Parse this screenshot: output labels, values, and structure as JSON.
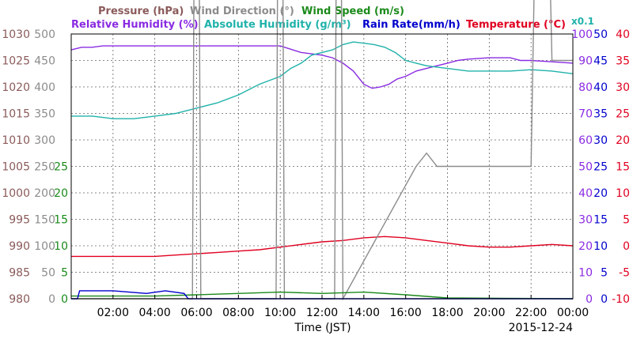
{
  "chart_data": {
    "type": "line",
    "legend": {
      "row1": [
        {
          "label": "Pressure (hPa)",
          "color": "#8b5a5a"
        },
        {
          "label": "Wind Direction (°)",
          "color": "#8c8c8c"
        },
        {
          "label": "Wind Speed (m/s)",
          "color": "#1a8a1a"
        }
      ],
      "row2": [
        {
          "label": "Relative Humidity (%)",
          "color": "#8a2be2"
        },
        {
          "label": "Absolute Humidity (g/m³)",
          "color": "#20b2aa"
        },
        {
          "label": "Rain Rate(mm/h)",
          "color": "#0000cd"
        },
        {
          "label": "Temperature (°C)",
          "color": "#e00020"
        }
      ],
      "scale_note": "x0.1",
      "scale_note_color": "#20b2aa"
    },
    "xlabel": "Time (JST)",
    "date_label": "2015-12-24",
    "x_ticks": [
      "02:00",
      "04:00",
      "06:00",
      "08:00",
      "10:00",
      "12:00",
      "14:00",
      "16:00",
      "18:00",
      "20:00",
      "22:00",
      "00:00"
    ],
    "x_range": [
      0,
      24
    ],
    "axes": {
      "pressure": {
        "ticks": [
          "1030",
          "1025",
          "1020",
          "1015",
          "1010",
          "1005",
          "1000",
          "995",
          "990",
          "985",
          "980"
        ],
        "range": [
          980,
          1030
        ],
        "color": "#8b5a5a"
      },
      "wind_direction": {
        "ticks": [
          "500",
          "450",
          "400",
          "350",
          "300",
          "250",
          "200",
          "150",
          "100",
          "50",
          "0"
        ],
        "range": [
          0,
          500
        ],
        "color": "#8c8c8c"
      },
      "wind_speed": {
        "ticks": [
          "25",
          "20",
          "15",
          "10",
          "5",
          "0"
        ],
        "range": [
          0,
          25
        ],
        "color": "#1a8a1a"
      },
      "relative_humidity": {
        "ticks": [
          "100",
          "90",
          "80",
          "70",
          "60",
          "50",
          "40",
          "30",
          "20",
          "10",
          "0"
        ],
        "range": [
          0,
          100
        ],
        "color": "#8a2be2"
      },
      "rain_rate": {
        "ticks": [
          "50",
          "45",
          "40",
          "35",
          "30",
          "25",
          "20",
          "15",
          "10",
          "5",
          "0"
        ],
        "range": [
          0,
          50
        ],
        "color": "#0000cd"
      },
      "temperature": {
        "ticks": [
          "40",
          "35",
          "30",
          "25",
          "20",
          "15",
          "10",
          "5",
          "0",
          "-5",
          "-10"
        ],
        "range": [
          -10,
          40
        ],
        "color": "#e00020"
      }
    },
    "series": [
      {
        "name": "Relative Humidity (%)",
        "color": "#8a2be2",
        "points": [
          [
            0,
            94
          ],
          [
            0.5,
            95
          ],
          [
            1,
            95
          ],
          [
            1.5,
            95.5
          ],
          [
            4,
            95.5
          ],
          [
            6,
            95.5
          ],
          [
            8,
            95.5
          ],
          [
            10,
            95.5
          ],
          [
            11,
            93
          ],
          [
            12,
            92
          ],
          [
            12.5,
            91
          ],
          [
            13,
            89
          ],
          [
            13.5,
            86
          ],
          [
            14,
            81
          ],
          [
            14.4,
            79.5
          ],
          [
            14.8,
            80
          ],
          [
            15.2,
            81
          ],
          [
            15.6,
            83
          ],
          [
            16,
            84
          ],
          [
            16.5,
            86
          ],
          [
            17,
            87
          ],
          [
            17.5,
            88
          ],
          [
            18,
            89
          ],
          [
            18.5,
            90
          ],
          [
            19,
            90.5
          ],
          [
            20,
            91
          ],
          [
            21,
            91
          ],
          [
            21.5,
            90
          ],
          [
            22,
            90
          ],
          [
            23,
            89.5
          ],
          [
            24,
            89
          ]
        ]
      },
      {
        "name": "Absolute Humidity (g/m³)",
        "color": "#20b2aa",
        "points": [
          [
            0,
            69
          ],
          [
            1,
            69
          ],
          [
            2,
            68
          ],
          [
            3,
            68
          ],
          [
            4,
            69
          ],
          [
            5,
            70
          ],
          [
            6,
            72
          ],
          [
            7,
            74
          ],
          [
            8,
            77
          ],
          [
            9,
            81
          ],
          [
            10,
            84
          ],
          [
            10.5,
            87
          ],
          [
            11,
            89
          ],
          [
            11.5,
            92
          ],
          [
            12,
            93
          ],
          [
            12.5,
            94
          ],
          [
            13,
            96
          ],
          [
            13.5,
            97
          ],
          [
            14,
            96.5
          ],
          [
            14.5,
            96
          ],
          [
            15,
            95
          ],
          [
            15.5,
            93
          ],
          [
            16,
            90
          ],
          [
            16.5,
            89
          ],
          [
            17,
            88
          ],
          [
            17.5,
            87.5
          ],
          [
            18,
            87
          ],
          [
            19,
            86
          ],
          [
            20,
            86
          ],
          [
            21,
            86
          ],
          [
            22,
            86.5
          ],
          [
            23,
            86
          ],
          [
            24,
            85
          ]
        ]
      },
      {
        "name": "Pressure (hPa)",
        "color": "#8b5a5a",
        "points": [
          [
            0,
            1015.5
          ],
          [
            1,
            1015
          ],
          [
            2,
            1014
          ],
          [
            3,
            1012
          ],
          [
            4,
            1011
          ],
          [
            5,
            1011
          ],
          [
            6,
            1010.5
          ],
          [
            8,
            1010.5
          ],
          [
            10,
            1010.5
          ],
          [
            11,
            1010
          ],
          [
            12,
            1009
          ],
          [
            13,
            1008
          ],
          [
            14,
            1007.5
          ],
          [
            15,
            1008
          ],
          [
            16,
            1008.5
          ],
          [
            17,
            1009
          ],
          [
            18,
            1008.5
          ],
          [
            19,
            1009
          ],
          [
            20,
            1009.5
          ],
          [
            21,
            1009.5
          ],
          [
            22,
            1009
          ],
          [
            23,
            1007.5
          ],
          [
            24,
            1006.5
          ]
        ]
      },
      {
        "name": "Temperature (°C)",
        "color": "#e00020",
        "points": [
          [
            0,
            16
          ],
          [
            1,
            16
          ],
          [
            2,
            16
          ],
          [
            3,
            16
          ],
          [
            4,
            16
          ],
          [
            5,
            16.5
          ],
          [
            6,
            17
          ],
          [
            7,
            17.5
          ],
          [
            8,
            18
          ],
          [
            9,
            18.5
          ],
          [
            10,
            19.5
          ],
          [
            11,
            20.5
          ],
          [
            12,
            21.5
          ],
          [
            13,
            22
          ],
          [
            14,
            23
          ],
          [
            15,
            23.5
          ],
          [
            16,
            23
          ],
          [
            17,
            22
          ],
          [
            18,
            21
          ],
          [
            19,
            20
          ],
          [
            20,
            19.5
          ],
          [
            21,
            19.5
          ],
          [
            22,
            20
          ],
          [
            23,
            20.5
          ],
          [
            24,
            20
          ]
        ]
      },
      {
        "name": "Wind Direction (°)",
        "color": "#8c8c8c",
        "points": [
          [
            0,
            0
          ],
          [
            5.8,
            0
          ],
          [
            6,
            330
          ],
          [
            6.2,
            0
          ],
          [
            9.8,
            0
          ],
          [
            10,
            340
          ],
          [
            10.2,
            0
          ],
          [
            12.6,
            0
          ],
          [
            12.8,
            330
          ],
          [
            13,
            0
          ],
          [
            16.5,
            50
          ],
          [
            17,
            55
          ],
          [
            17.5,
            50
          ],
          [
            18,
            50
          ],
          [
            21,
            50
          ],
          [
            22,
            50
          ],
          [
            22.2,
            140
          ],
          [
            22.5,
            160
          ],
          [
            22.8,
            160
          ],
          [
            23,
            90
          ],
          [
            23.5,
            90
          ],
          [
            24,
            90
          ]
        ]
      },
      {
        "name": "Wind Speed (m/s)",
        "color": "#1a8a1a",
        "points": [
          [
            0,
            1
          ],
          [
            2,
            1
          ],
          [
            4,
            1
          ],
          [
            6,
            1.5
          ],
          [
            8,
            2
          ],
          [
            10,
            2.5
          ],
          [
            12,
            2
          ],
          [
            14,
            2.5
          ],
          [
            16,
            1.5
          ],
          [
            18,
            0.3
          ],
          [
            24,
            0
          ]
        ]
      },
      {
        "name": "Rain Rate(mm/h)",
        "color": "#0000cd",
        "points": [
          [
            0,
            0
          ],
          [
            0.3,
            0
          ],
          [
            0.4,
            3
          ],
          [
            2,
            3
          ],
          [
            3.6,
            2
          ],
          [
            4.5,
            3
          ],
          [
            5.4,
            2
          ],
          [
            5.6,
            0
          ],
          [
            24,
            0
          ]
        ]
      }
    ]
  }
}
